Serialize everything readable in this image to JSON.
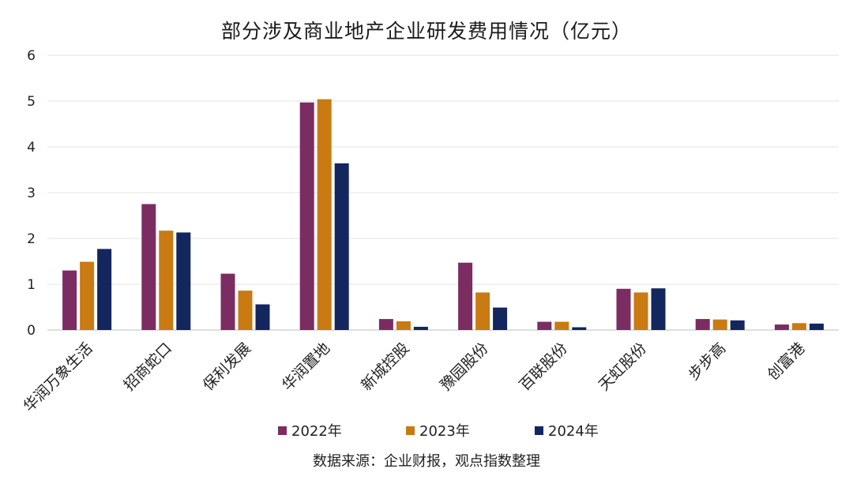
{
  "chart_data": {
    "type": "bar",
    "title": "部分涉及商业地产企业研发费用情况（亿元）",
    "categories": [
      "华润万象生活",
      "招商蛇口",
      "保利发展",
      "华润置地",
      "新城控股",
      "豫园股份",
      "百联股份",
      "天虹股份",
      "步步高",
      "创富港"
    ],
    "series": [
      {
        "name": "2022年",
        "color": "#7b2d62",
        "values": [
          1.3,
          2.75,
          1.23,
          4.97,
          0.24,
          1.47,
          0.18,
          0.9,
          0.24,
          0.12
        ]
      },
      {
        "name": "2023年",
        "color": "#c97a12",
        "values": [
          1.49,
          2.17,
          0.86,
          5.04,
          0.19,
          0.82,
          0.18,
          0.82,
          0.23,
          0.15
        ]
      },
      {
        "name": "2024年",
        "color": "#13265e",
        "values": [
          1.77,
          2.13,
          0.56,
          3.64,
          0.07,
          0.49,
          0.06,
          0.91,
          0.21,
          0.14
        ]
      }
    ],
    "ylim": [
      0,
      6
    ],
    "yticks": [
      0,
      1,
      2,
      3,
      4,
      5,
      6
    ],
    "xlabel": "",
    "ylabel": "",
    "grid": true,
    "legend_position": "bottom"
  },
  "source": "数据来源：企业财报，观点指数整理"
}
